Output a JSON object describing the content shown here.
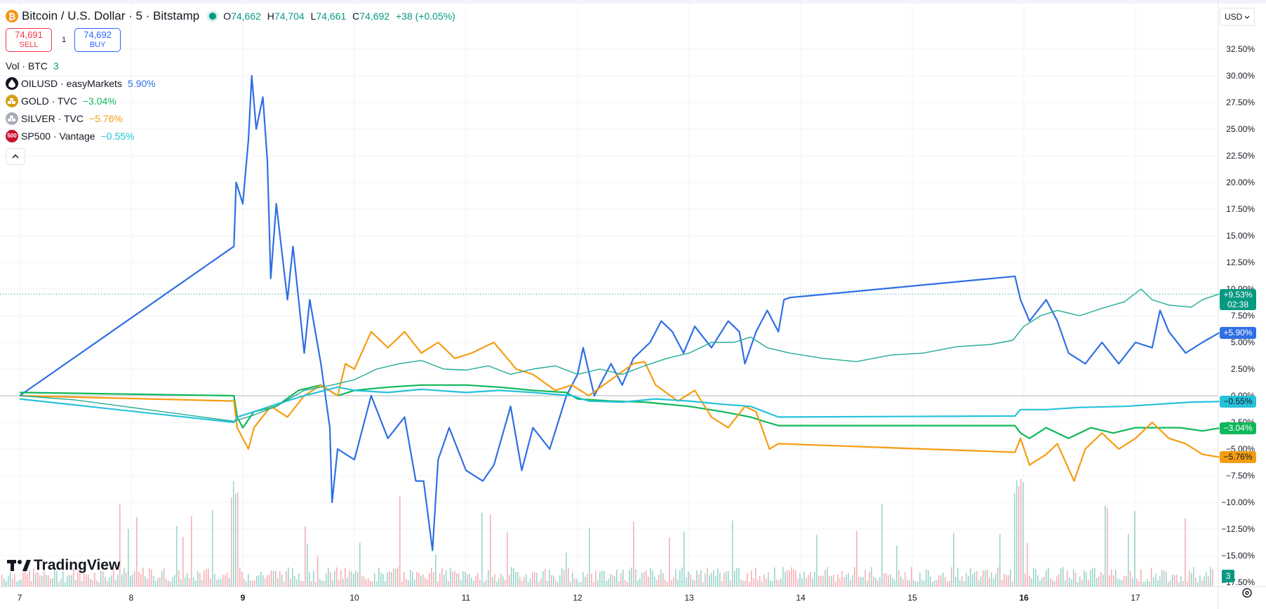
{
  "header": {
    "symbol_title": "Bitcoin / U.S. Dollar · 5 · Bitstamp",
    "ohlc": {
      "o_label": "O",
      "o": "74,662",
      "h_label": "H",
      "h": "74,704",
      "l_label": "L",
      "l": "74,661",
      "c_label": "C",
      "c": "74,692",
      "change": "+38 (+0.05%)"
    }
  },
  "trade": {
    "sell_price": "74,691",
    "sell_label": "SELL",
    "qty": "1",
    "buy_price": "74,692",
    "buy_label": "BUY"
  },
  "indicators": {
    "volume": {
      "label": "Vol · BTC",
      "value": "3"
    },
    "compare": [
      {
        "name": "OILUSD · easyMarkets",
        "value": "5.90%",
        "color": "#2f6fe4",
        "icon": "oil-drop-icon"
      },
      {
        "name": "GOLD · TVC",
        "value": "−3.04%",
        "color": "#0fb85a",
        "icon": "gold-bars-icon"
      },
      {
        "name": "SILVER · TVC",
        "value": "−5.76%",
        "color": "#f59d12",
        "icon": "silver-bars-icon"
      },
      {
        "name": "SP500 · Vantage",
        "value": "−0.55%",
        "color": "#27c2da",
        "icon": "sp500-icon"
      }
    ]
  },
  "currency_selector": {
    "value": "USD"
  },
  "price_tags": {
    "btc_change": "+9.53%",
    "btc_countdown": "02:38",
    "oil": "+5.90%",
    "sp500": "−0.55%",
    "gold": "−3.04%",
    "silver": "−5.76%"
  },
  "volume_badge": "3",
  "logo": "TradingView",
  "colors": {
    "up": "#089981",
    "down": "#f23645",
    "btc_line": "#22ab94",
    "oil": "#2f6fe4",
    "gold": "#0fb85a",
    "silver": "#f59d12",
    "sp500": "#27c2da"
  },
  "chart_data": {
    "type": "line",
    "y_axis_unit": "%",
    "ylim": [
      -19,
      33
    ],
    "y_ticks": [
      "32.50%",
      "30.00%",
      "27.50%",
      "25.00%",
      "22.50%",
      "20.00%",
      "17.50%",
      "15.00%",
      "12.50%",
      "10.00%",
      "7.50%",
      "5.00%",
      "2.50%",
      "0.00%",
      "−2.50%",
      "−5.00%",
      "−7.50%",
      "−10.00%",
      "−12.50%",
      "−15.00%",
      "−17.50%"
    ],
    "x_ticks": [
      "7",
      "8",
      "9",
      "10",
      "11",
      "12",
      "13",
      "14",
      "15",
      "16",
      "17"
    ],
    "x_range": [
      7.0,
      17.8
    ],
    "grid": true,
    "series": [
      {
        "name": "OILUSD · easyMarkets",
        "color": "#2f6fe4",
        "points": [
          [
            7.0,
            0
          ],
          [
            8.92,
            14
          ],
          [
            8.94,
            20
          ],
          [
            9.0,
            18
          ],
          [
            9.05,
            24
          ],
          [
            9.08,
            30
          ],
          [
            9.12,
            25
          ],
          [
            9.18,
            28
          ],
          [
            9.22,
            22
          ],
          [
            9.25,
            11
          ],
          [
            9.3,
            18
          ],
          [
            9.4,
            9
          ],
          [
            9.45,
            14
          ],
          [
            9.55,
            4
          ],
          [
            9.6,
            9
          ],
          [
            9.7,
            3
          ],
          [
            9.78,
            -3
          ],
          [
            9.8,
            -10
          ],
          [
            9.85,
            -5
          ],
          [
            10.0,
            -6
          ],
          [
            10.15,
            0
          ],
          [
            10.3,
            -4
          ],
          [
            10.45,
            -2
          ],
          [
            10.55,
            -8
          ],
          [
            10.62,
            -8
          ],
          [
            10.7,
            -14.5
          ],
          [
            10.75,
            -6
          ],
          [
            10.85,
            -3
          ],
          [
            11.0,
            -7
          ],
          [
            11.15,
            -8
          ],
          [
            11.25,
            -6.5
          ],
          [
            11.4,
            -1
          ],
          [
            11.5,
            -7
          ],
          [
            11.6,
            -3
          ],
          [
            11.75,
            -5
          ],
          [
            11.9,
            0
          ],
          [
            12.0,
            2
          ],
          [
            12.05,
            4.5
          ],
          [
            12.15,
            0
          ],
          [
            12.3,
            3
          ],
          [
            12.4,
            1
          ],
          [
            12.5,
            3.5
          ],
          [
            12.65,
            5
          ],
          [
            12.75,
            7
          ],
          [
            12.85,
            6
          ],
          [
            12.95,
            4
          ],
          [
            13.05,
            6.5
          ],
          [
            13.2,
            4.5
          ],
          [
            13.35,
            7
          ],
          [
            13.45,
            6
          ],
          [
            13.5,
            3
          ],
          [
            13.6,
            6
          ],
          [
            13.7,
            8
          ],
          [
            13.8,
            6
          ],
          [
            13.85,
            9
          ],
          [
            13.9,
            9.2
          ],
          [
            15.92,
            11.2
          ],
          [
            15.97,
            9
          ],
          [
            16.05,
            7
          ],
          [
            16.2,
            9
          ],
          [
            16.3,
            7
          ],
          [
            16.4,
            4
          ],
          [
            16.55,
            3
          ],
          [
            16.7,
            5
          ],
          [
            16.85,
            3
          ],
          [
            17.0,
            5
          ],
          [
            17.15,
            4.5
          ],
          [
            17.22,
            8
          ],
          [
            17.3,
            6
          ],
          [
            17.45,
            4
          ],
          [
            17.6,
            5
          ],
          [
            17.75,
            5.9
          ]
        ]
      },
      {
        "name": "GOLD · TVC",
        "color": "#0fb85a",
        "points": [
          [
            7.0,
            0.3
          ],
          [
            8.92,
            0
          ],
          [
            8.95,
            -2
          ],
          [
            9.0,
            -3
          ],
          [
            9.1,
            -1.5
          ],
          [
            9.3,
            -1
          ],
          [
            9.5,
            0.5
          ],
          [
            9.7,
            1
          ],
          [
            9.85,
            0
          ],
          [
            10.0,
            0.5
          ],
          [
            10.3,
            0.8
          ],
          [
            10.6,
            1
          ],
          [
            11.0,
            1
          ],
          [
            11.3,
            0.8
          ],
          [
            11.6,
            0.5
          ],
          [
            11.9,
            0.3
          ],
          [
            12.0,
            -0.3
          ],
          [
            12.3,
            -0.5
          ],
          [
            12.6,
            -0.6
          ],
          [
            13.0,
            -1
          ],
          [
            13.3,
            -1.5
          ],
          [
            13.55,
            -2
          ],
          [
            13.7,
            -2.5
          ],
          [
            13.8,
            -2.8
          ],
          [
            15.92,
            -2.8
          ],
          [
            15.97,
            -3.5
          ],
          [
            16.05,
            -4
          ],
          [
            16.2,
            -3
          ],
          [
            16.4,
            -4
          ],
          [
            16.6,
            -3
          ],
          [
            16.8,
            -3.5
          ],
          [
            17.0,
            -3
          ],
          [
            17.2,
            -3
          ],
          [
            17.4,
            -3
          ],
          [
            17.6,
            -3.3
          ],
          [
            17.75,
            -3.04
          ]
        ]
      },
      {
        "name": "SILVER · TVC",
        "color": "#f59d12",
        "points": [
          [
            7.0,
            0
          ],
          [
            8.92,
            -0.5
          ],
          [
            8.95,
            -3
          ],
          [
            9.05,
            -5
          ],
          [
            9.1,
            -3
          ],
          [
            9.25,
            -1
          ],
          [
            9.4,
            -2
          ],
          [
            9.55,
            0
          ],
          [
            9.7,
            1
          ],
          [
            9.85,
            0
          ],
          [
            9.92,
            3
          ],
          [
            10.0,
            2.5
          ],
          [
            10.15,
            6
          ],
          [
            10.3,
            4.5
          ],
          [
            10.45,
            6
          ],
          [
            10.6,
            4
          ],
          [
            10.75,
            5
          ],
          [
            10.9,
            3.5
          ],
          [
            11.05,
            4
          ],
          [
            11.25,
            5
          ],
          [
            11.45,
            2.5
          ],
          [
            11.6,
            2
          ],
          [
            11.8,
            0.5
          ],
          [
            11.95,
            1
          ],
          [
            12.1,
            0
          ],
          [
            12.3,
            1.5
          ],
          [
            12.5,
            3
          ],
          [
            12.6,
            3.2
          ],
          [
            12.7,
            1
          ],
          [
            12.9,
            -0.5
          ],
          [
            13.05,
            0.5
          ],
          [
            13.2,
            -2
          ],
          [
            13.35,
            -3
          ],
          [
            13.5,
            -1
          ],
          [
            13.6,
            -1.5
          ],
          [
            13.72,
            -5
          ],
          [
            13.8,
            -4.5
          ],
          [
            15.92,
            -5.3
          ],
          [
            15.97,
            -4
          ],
          [
            16.05,
            -6.5
          ],
          [
            16.2,
            -5.5
          ],
          [
            16.3,
            -4.5
          ],
          [
            16.45,
            -8
          ],
          [
            16.55,
            -5
          ],
          [
            16.7,
            -3.5
          ],
          [
            16.85,
            -5
          ],
          [
            17.0,
            -4
          ],
          [
            17.15,
            -2.5
          ],
          [
            17.3,
            -4
          ],
          [
            17.45,
            -4.5
          ],
          [
            17.6,
            -5.5
          ],
          [
            17.75,
            -5.76
          ]
        ]
      },
      {
        "name": "SP500 · Vantage",
        "color": "#27c2da",
        "points": [
          [
            7.0,
            -0.3
          ],
          [
            8.92,
            -2.5
          ],
          [
            8.95,
            -2
          ],
          [
            9.1,
            -1.5
          ],
          [
            9.3,
            -0.8
          ],
          [
            9.55,
            0
          ],
          [
            9.85,
            0.8
          ],
          [
            10.0,
            0.5
          ],
          [
            10.3,
            0.3
          ],
          [
            10.6,
            0.6
          ],
          [
            11.0,
            0.3
          ],
          [
            11.3,
            0.5
          ],
          [
            11.6,
            0.3
          ],
          [
            11.95,
            0
          ],
          [
            12.1,
            -0.5
          ],
          [
            12.4,
            -0.6
          ],
          [
            12.7,
            -0.3
          ],
          [
            13.0,
            -0.5
          ],
          [
            13.3,
            -0.8
          ],
          [
            13.55,
            -1
          ],
          [
            13.7,
            -1.6
          ],
          [
            13.8,
            -2
          ],
          [
            15.92,
            -1.9
          ],
          [
            15.97,
            -1.3
          ],
          [
            16.2,
            -1.3
          ],
          [
            16.5,
            -1.1
          ],
          [
            16.9,
            -1
          ],
          [
            17.2,
            -0.8
          ],
          [
            17.5,
            -0.6
          ],
          [
            17.75,
            -0.55
          ]
        ]
      },
      {
        "name": "Bitcoin / U.S. Dollar",
        "color": "#22ab94",
        "points": [
          [
            7.0,
            0
          ],
          [
            7.5,
            -0.4
          ],
          [
            8.0,
            -1.1
          ],
          [
            8.5,
            -1.8
          ],
          [
            8.92,
            -2.4
          ],
          [
            9.1,
            -1.8
          ],
          [
            9.3,
            -1
          ],
          [
            9.55,
            0.5
          ],
          [
            9.8,
            1
          ],
          [
            10.0,
            1.5
          ],
          [
            10.2,
            2.5
          ],
          [
            10.4,
            3
          ],
          [
            10.6,
            3.3
          ],
          [
            10.8,
            2.5
          ],
          [
            11.0,
            2.4
          ],
          [
            11.2,
            2.8
          ],
          [
            11.4,
            2
          ],
          [
            11.6,
            2.5
          ],
          [
            11.8,
            2.8
          ],
          [
            12.0,
            2
          ],
          [
            12.2,
            2.5
          ],
          [
            12.4,
            2
          ],
          [
            12.6,
            2.8
          ],
          [
            12.8,
            3.5
          ],
          [
            13.0,
            4
          ],
          [
            13.2,
            5
          ],
          [
            13.4,
            5
          ],
          [
            13.55,
            5.5
          ],
          [
            13.7,
            4.5
          ],
          [
            13.9,
            4
          ],
          [
            14.2,
            3.5
          ],
          [
            14.5,
            3.2
          ],
          [
            14.8,
            3.8
          ],
          [
            15.1,
            4
          ],
          [
            15.4,
            4.6
          ],
          [
            15.7,
            4.8
          ],
          [
            15.9,
            5.2
          ],
          [
            16.0,
            6.5
          ],
          [
            16.15,
            7.5
          ],
          [
            16.3,
            8
          ],
          [
            16.5,
            7.5
          ],
          [
            16.7,
            8.2
          ],
          [
            16.9,
            8.8
          ],
          [
            17.05,
            10
          ],
          [
            17.15,
            9
          ],
          [
            17.3,
            8.5
          ],
          [
            17.5,
            8.3
          ],
          [
            17.6,
            9
          ],
          [
            17.75,
            9.53
          ]
        ]
      }
    ],
    "last_value_line": 9.53,
    "zero_line": 0
  }
}
